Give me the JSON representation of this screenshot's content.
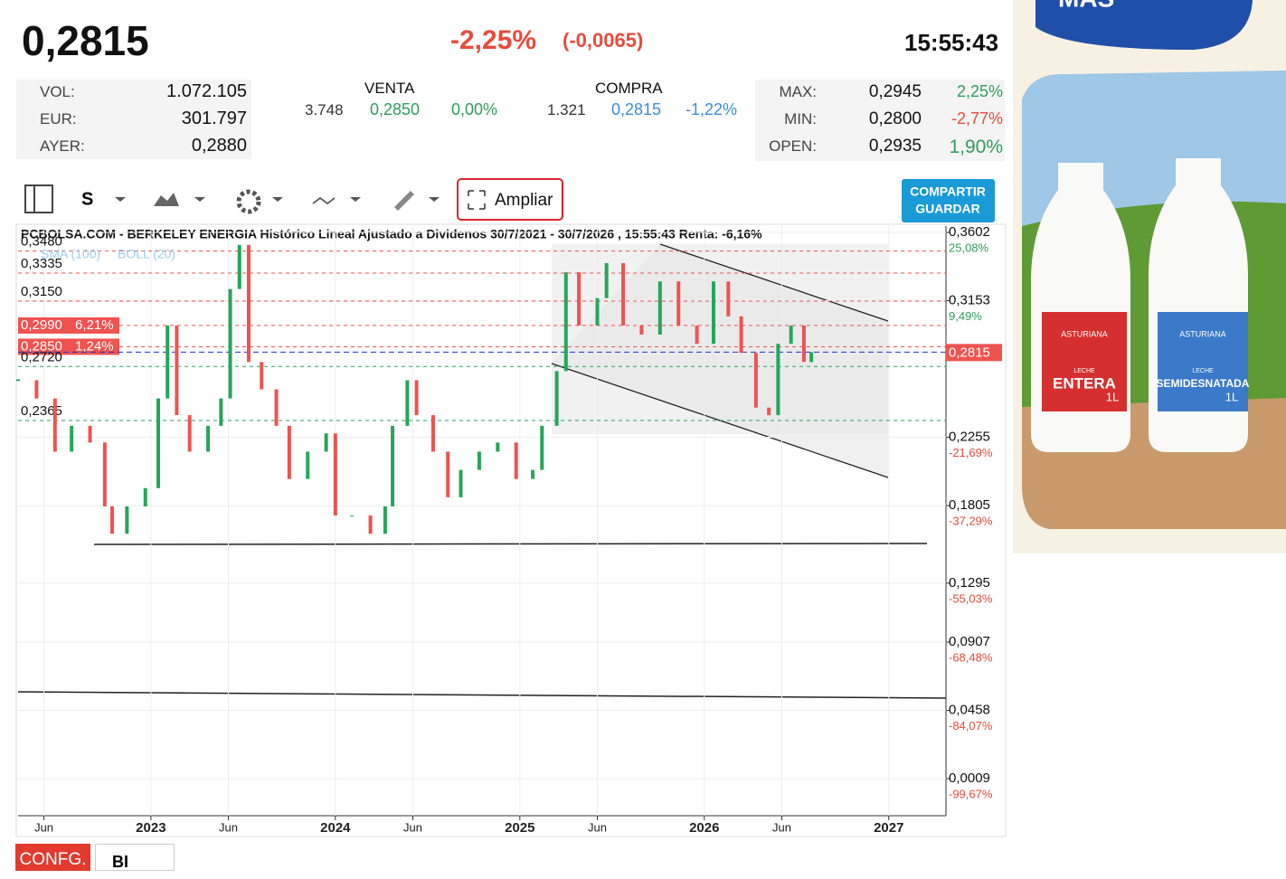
{
  "header": {
    "price": "0,2815",
    "change_pct": "-2,25%",
    "change_abs": "(-0,0065)",
    "time": "15:55:43"
  },
  "stats": {
    "left": [
      {
        "label": "VOL:",
        "value": "1.072.105"
      },
      {
        "label": "EUR:",
        "value": "301.797"
      },
      {
        "label": "AYER:",
        "value": "0,2880"
      }
    ],
    "venta": {
      "label": "VENTA",
      "qty": "3.748",
      "price": "0,2850",
      "pct": "0,00%"
    },
    "compra": {
      "label": "COMPRA",
      "qty": "1.321",
      "price": "0,2815",
      "pct": "-1,22%"
    },
    "right": [
      {
        "label": "MAX:",
        "value": "0,2945",
        "pct": "2,25%"
      },
      {
        "label": "MIN:",
        "value": "0,2800",
        "pct": "-2,77%"
      },
      {
        "label": "OPEN:",
        "value": "0,2935",
        "pct": "1,90%"
      }
    ]
  },
  "toolbar": {
    "period": "S",
    "expand": "Ampliar",
    "share": "COMPARTIR",
    "save": "GUARDAR"
  },
  "chart_data": {
    "type": "candle-line",
    "title": "PCBOLSA.COM - BERKELEY ENERGIA Histórico Lineal Ajustado a Dividenos 30/7/2021 - 30/7/2026 , 15:55:43 Renta: -6,16%",
    "indicators": [
      "SMA (100)",
      "BOLL (20)"
    ],
    "xlim": [
      2022.28,
      2027.31
    ],
    "ylim": [
      -0.0235,
      0.3644
    ],
    "xticks": [
      {
        "value": 2022.42,
        "label": "Jun"
      },
      {
        "value": 2023,
        "label": "2023"
      },
      {
        "value": 2023.42,
        "label": "Jun"
      },
      {
        "value": 2024,
        "label": "2024"
      },
      {
        "value": 2024.42,
        "label": "Jun"
      },
      {
        "value": 2025,
        "label": "2025"
      },
      {
        "value": 2025.42,
        "label": "Jun"
      },
      {
        "value": 2026,
        "label": "2026"
      },
      {
        "value": 2026.42,
        "label": "Jun"
      },
      {
        "value": 2027,
        "label": "2027"
      }
    ],
    "yticks": [
      {
        "value": 0.3602,
        "label": "0,3602"
      },
      {
        "value": 0.3153,
        "label": "0,3153"
      },
      {
        "value": 0.2255,
        "label": "0,2255"
      },
      {
        "value": 0.1805,
        "label": "0,1805"
      },
      {
        "value": 0.1295,
        "label": "0,1295"
      },
      {
        "value": 0.0907,
        "label": "0,0907"
      },
      {
        "value": 0.0458,
        "label": "0,0458"
      },
      {
        "value": 0.0009,
        "label": "0,0009"
      }
    ],
    "ytick_pcts": [
      "25,08%",
      "9,49%",
      "-21,69%",
      "-37,29%",
      "-55,03%",
      "-68,48%",
      "-84,07%",
      "-99,67%"
    ],
    "levels": [
      {
        "value": 0.348,
        "label": "0,3480"
      },
      {
        "value": 0.3335,
        "label": "0,3335"
      },
      {
        "value": 0.315,
        "label": "0,3150"
      },
      {
        "value": 0.299,
        "label": "0,2990",
        "pct": "6,21%"
      },
      {
        "value": 0.285,
        "label": "0,2850",
        "pct": "1,24%"
      },
      {
        "value": 0.272,
        "label": "0,2720"
      },
      {
        "value": 0.2365,
        "label": "0,2365"
      }
    ],
    "last": {
      "value": 0.2815,
      "label": "0,2815"
    },
    "series": [
      {
        "name": "BERKELEY ENERGIA",
        "up_color": "#26a65b",
        "down_color": "#ef5350",
        "x": [
          2022.28,
          2022.38,
          2022.48,
          2022.57,
          2022.67,
          2022.75,
          2022.79,
          2022.87,
          2022.97,
          2023.04,
          2023.09,
          2023.14,
          2023.21,
          2023.31,
          2023.38,
          2023.43,
          2023.48,
          2023.53,
          2023.6,
          2023.68,
          2023.75,
          2023.85,
          2023.95,
          2024.0,
          2024.09,
          2024.19,
          2024.27,
          2024.31,
          2024.39,
          2024.44,
          2024.53,
          2024.61,
          2024.68,
          2024.78,
          2024.88,
          2024.98,
          2025.07,
          2025.12,
          2025.2,
          2025.25,
          2025.32,
          2025.42,
          2025.47,
          2025.56,
          2025.66,
          2025.76,
          2025.86,
          2025.96,
          2026.05,
          2026.13,
          2026.2,
          2026.28,
          2026.35,
          2026.4,
          2026.47,
          2026.54,
          2026.58
        ],
        "values": [
          0.263,
          0.251,
          0.216,
          0.233,
          0.222,
          0.18,
          0.162,
          0.18,
          0.192,
          0.251,
          0.299,
          0.24,
          0.216,
          0.233,
          0.251,
          0.323,
          0.352,
          0.275,
          0.257,
          0.233,
          0.198,
          0.216,
          0.228,
          0.174,
          0.174,
          0.162,
          0.18,
          0.233,
          0.263,
          0.24,
          0.216,
          0.186,
          0.204,
          0.216,
          0.222,
          0.198,
          0.204,
          0.233,
          0.269,
          0.334,
          0.299,
          0.317,
          0.34,
          0.299,
          0.293,
          0.328,
          0.299,
          0.287,
          0.328,
          0.305,
          0.281,
          0.245,
          0.24,
          0.287,
          0.299,
          0.275,
          0.2815
        ]
      }
    ]
  },
  "footer": {
    "config": "CONFG.",
    "mode": "BI"
  },
  "ad": {
    "top": "MAS",
    "brand": "ASTURIANA",
    "milk": "LECHE",
    "product1": "ENTERA",
    "product2": "SEMIDESNATADA",
    "size": "1L"
  }
}
